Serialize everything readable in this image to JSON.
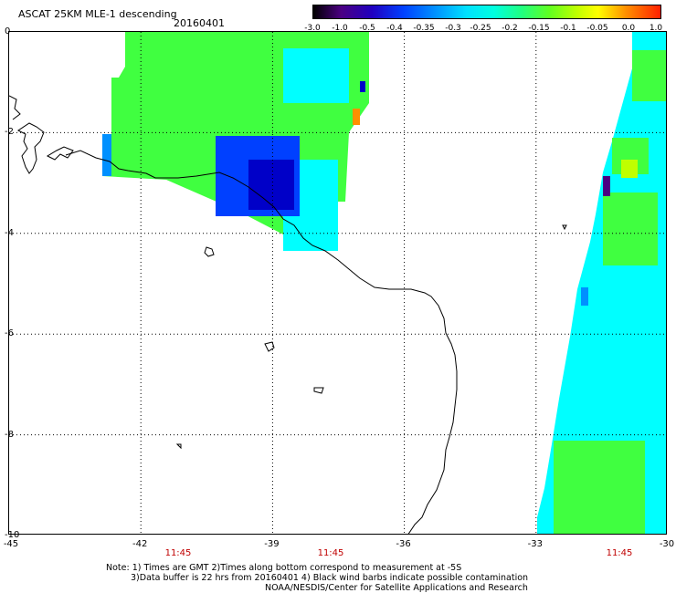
{
  "header": {
    "title": "ASCAT 25KM MLE-1 descending",
    "date": "20160401"
  },
  "colorbar": {
    "ticks": [
      "-3.0",
      "-1.0",
      "-0.5",
      "-0.4",
      "-0.35",
      "-0.3",
      "-0.25",
      "-0.2",
      "-0.15",
      "-0.1",
      "-0.05",
      "0.0",
      "1.0"
    ]
  },
  "axes": {
    "y_labels": [
      "0",
      "-2",
      "-4",
      "-6",
      "-8",
      "-10"
    ],
    "x_labels": [
      "-45",
      "-42",
      "-39",
      "-36",
      "-33",
      "-30"
    ],
    "xlim": [
      -45,
      -30
    ],
    "ylim": [
      -10,
      0
    ],
    "grid": "dotted"
  },
  "times": [
    "11:45",
    "11:45",
    "11:45"
  ],
  "notes": {
    "line1": "Note: 1) Times are GMT 2)Times along bottom correspond to measurement at -5S",
    "line2": "3)Data buffer is 22 hrs from 20160401 4) Black wind barbs indicate possible contamination",
    "line3": "NOAA/NESDIS/Center for Satellite Applications and Research"
  },
  "colors": {
    "cyan": "#00ffff",
    "green": "#40ff40",
    "blue": "#0040ff",
    "dark_blue": "#0000c8",
    "coast": "#000000",
    "time_red": "#c00000"
  }
}
